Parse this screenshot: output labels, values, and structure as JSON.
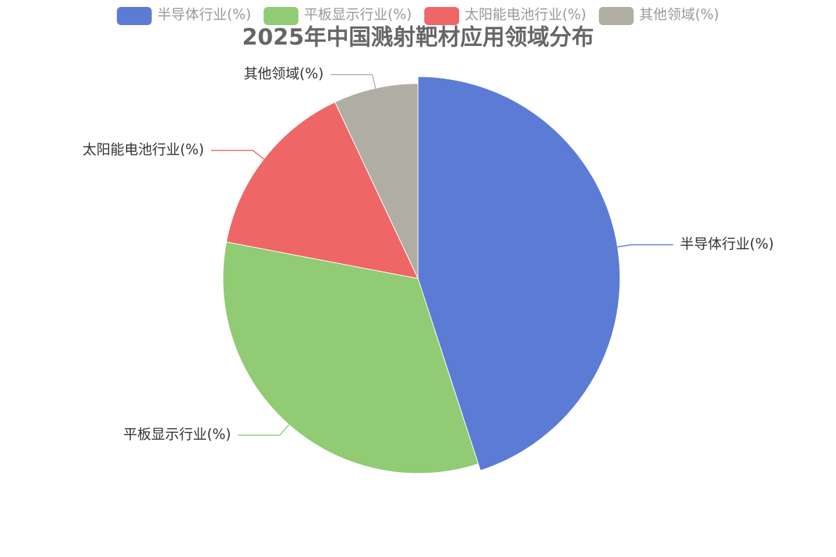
{
  "chart_data": {
    "type": "pie",
    "title": "2025年中国溅射靶材应用领域分布",
    "categories": [
      "半导体行业(%)",
      "平板显示行业(%)",
      "太阳能电池行业(%)",
      "其他领域(%)"
    ],
    "values": [
      45,
      33,
      15,
      7
    ],
    "colors": [
      "#5b7bd5",
      "#91cb74",
      "#ee6666",
      "#b0ada4"
    ],
    "legend": "top"
  }
}
